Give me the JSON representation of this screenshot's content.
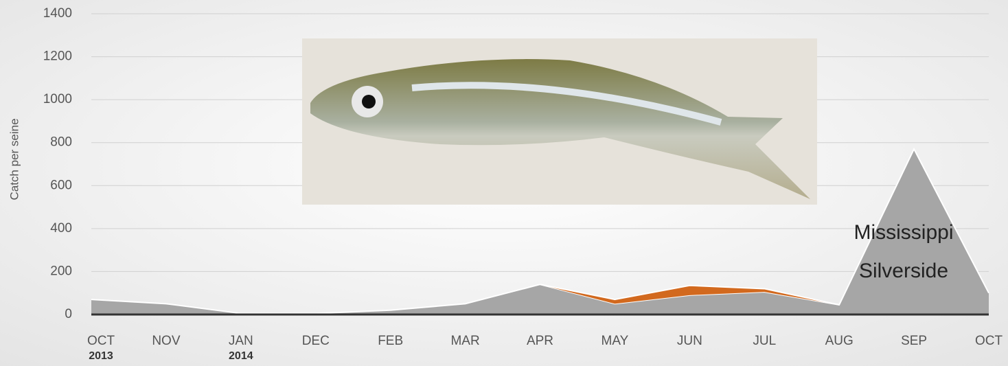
{
  "chart_data": {
    "type": "area",
    "y_label": "Catch per seine",
    "categories": [
      "OCT",
      "NOV",
      "JAN",
      "DEC",
      "FEB",
      "MAR",
      "APR",
      "MAY",
      "JUN",
      "JUL",
      "AUG",
      "SEP",
      "OCT"
    ],
    "category_years": [
      "2013",
      null,
      "2014",
      null,
      null,
      null,
      null,
      null,
      null,
      null,
      null,
      null,
      null
    ],
    "stacked": true,
    "series": [
      {
        "color": "#a6a6a6",
        "values": [
          70,
          50,
          5,
          5,
          20,
          50,
          140,
          50,
          90,
          105,
          45,
          770,
          100
        ]
      },
      {
        "color": "#d2691e",
        "values": [
          null,
          null,
          null,
          null,
          null,
          null,
          0,
          20,
          45,
          15,
          0,
          null,
          null
        ]
      }
    ],
    "ylim": [
      0,
      1400
    ],
    "yticks": [
      0,
      200,
      400,
      600,
      800,
      1000,
      1200,
      1400
    ],
    "grid": true,
    "annotation_lines": [
      "Mississippi",
      "Silverside"
    ]
  }
}
